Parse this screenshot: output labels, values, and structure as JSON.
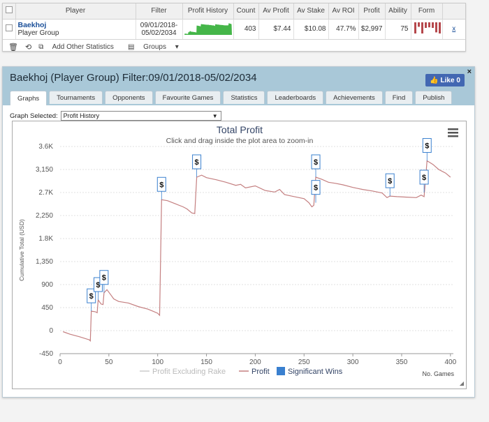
{
  "table": {
    "headers": [
      "Player",
      "Filter",
      "Profit History",
      "Count",
      "Av Profit",
      "Av Stake",
      "Av ROI",
      "Profit",
      "Ability",
      "Form"
    ],
    "row": {
      "player_name": "Baekhoj",
      "player_type": "Player Group",
      "filter_line1": "09/01/2018-",
      "filter_line2": "05/02/2034",
      "count": "403",
      "av_profit": "$7.44",
      "av_stake": "$10.08",
      "av_roi": "47.7%",
      "profit": "$2,997",
      "ability": "75",
      "remove": "x"
    },
    "form_bars": [
      1,
      0.4,
      1,
      0.5,
      0.45,
      0.5,
      0.9,
      1
    ],
    "spark_color": "#45b649",
    "form_color": "#b5474b"
  },
  "toolbar": {
    "add_stats": "Add Other Statistics",
    "groups": "Groups"
  },
  "panel": {
    "title": "Baekhoj (Player Group) Filter:09/01/2018-05/02/2034",
    "like": "Like 0",
    "close": "×",
    "tabs": [
      "Graphs",
      "Tournaments",
      "Opponents",
      "Favourite Games",
      "Statistics",
      "Leaderboards",
      "Achievements",
      "Find",
      "Publish"
    ],
    "graph_selected_label": "Graph Selected:",
    "graph_selected_value": "Profit History"
  },
  "chart_data": {
    "type": "line",
    "title": "Total Profit",
    "subtitle": "Click and drag inside the plot area to zoom-in",
    "ylabel": "Cumulative Total (USD)",
    "xlabel": "No. Games",
    "ylim": [
      -450,
      3600
    ],
    "xlim": [
      0,
      403
    ],
    "y_ticks": [
      -450,
      0,
      450,
      900,
      1350,
      1800,
      2250,
      2700,
      3150,
      3600
    ],
    "y_tick_labels": [
      "-450",
      "0",
      "450",
      "900",
      "1,350",
      "1.8K",
      "2,250",
      "2.7K",
      "3,150",
      "3.6K"
    ],
    "x_ticks": [
      0,
      50,
      100,
      150,
      200,
      250,
      300,
      350,
      400
    ],
    "legend": [
      "Profit Excluding Rake",
      "Profit",
      "Significant Wins"
    ],
    "legend_colors": [
      "#cccccc",
      "#c47f80",
      "#3a80cf"
    ],
    "series": [
      {
        "name": "Profit",
        "points": [
          [
            3,
            -20
          ],
          [
            10,
            -70
          ],
          [
            20,
            -120
          ],
          [
            30,
            -180
          ],
          [
            31,
            -200
          ],
          [
            32,
            380
          ],
          [
            36,
            370
          ],
          [
            38,
            350
          ],
          [
            39,
            600
          ],
          [
            42,
            520
          ],
          [
            44,
            510
          ],
          [
            45,
            740
          ],
          [
            48,
            800
          ],
          [
            52,
            700
          ],
          [
            55,
            620
          ],
          [
            60,
            570
          ],
          [
            70,
            540
          ],
          [
            80,
            470
          ],
          [
            90,
            420
          ],
          [
            95,
            380
          ],
          [
            100,
            340
          ],
          [
            102,
            300
          ],
          [
            104,
            2560
          ],
          [
            110,
            2540
          ],
          [
            118,
            2480
          ],
          [
            126,
            2420
          ],
          [
            130,
            2380
          ],
          [
            135,
            2300
          ],
          [
            138,
            2290
          ],
          [
            140,
            3000
          ],
          [
            145,
            3040
          ],
          [
            150,
            2990
          ],
          [
            160,
            2950
          ],
          [
            170,
            2900
          ],
          [
            180,
            2840
          ],
          [
            185,
            2860
          ],
          [
            190,
            2790
          ],
          [
            200,
            2830
          ],
          [
            210,
            2740
          ],
          [
            220,
            2710
          ],
          [
            225,
            2760
          ],
          [
            230,
            2660
          ],
          [
            240,
            2620
          ],
          [
            250,
            2580
          ],
          [
            255,
            2500
          ],
          [
            258,
            2420
          ],
          [
            260,
            2450
          ],
          [
            262,
            3000
          ],
          [
            268,
            2960
          ],
          [
            275,
            2900
          ],
          [
            282,
            2880
          ],
          [
            290,
            2850
          ],
          [
            300,
            2800
          ],
          [
            310,
            2760
          ],
          [
            320,
            2730
          ],
          [
            330,
            2690
          ],
          [
            335,
            2600
          ],
          [
            338,
            2630
          ],
          [
            345,
            2620
          ],
          [
            355,
            2610
          ],
          [
            365,
            2600
          ],
          [
            370,
            2650
          ],
          [
            373,
            2620
          ],
          [
            376,
            3320
          ],
          [
            382,
            3250
          ],
          [
            388,
            3150
          ],
          [
            395,
            3080
          ],
          [
            400,
            3000
          ]
        ]
      }
    ],
    "significant_wins": [
      [
        32,
        380
      ],
      [
        39,
        600
      ],
      [
        45,
        740
      ],
      [
        104,
        2560
      ],
      [
        140,
        3000
      ],
      [
        262,
        2500
      ],
      [
        262,
        3000
      ],
      [
        338,
        2630
      ],
      [
        373,
        2700
      ],
      [
        376,
        3320
      ]
    ]
  }
}
